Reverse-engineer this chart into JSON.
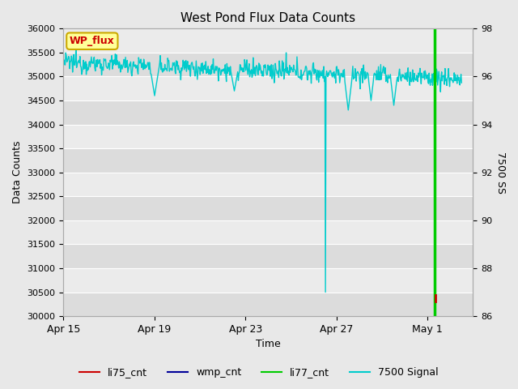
{
  "title": "West Pond Flux Data Counts",
  "xlabel": "Time",
  "ylabel_left": "Data Counts",
  "ylabel_right": "7500 SS",
  "ylim_left": [
    30000,
    36000
  ],
  "ylim_right": [
    86,
    98
  ],
  "yticks_left": [
    30000,
    30500,
    31000,
    31500,
    32000,
    32500,
    33000,
    33500,
    34000,
    34500,
    35000,
    35500,
    36000
  ],
  "yticks_right": [
    86,
    88,
    90,
    92,
    94,
    96,
    98
  ],
  "xtick_labels": [
    "Apr 15",
    "Apr 19",
    "Apr 23",
    "Apr 27",
    "May 1"
  ],
  "xtick_positions": [
    0,
    4,
    8,
    12,
    16
  ],
  "xlim": [
    0,
    18
  ],
  "fig_bg_color": "#e8e8e8",
  "plot_bg_color": "#e8e8e8",
  "legend_entries": [
    "li75_cnt",
    "wmp_cnt",
    "li77_cnt",
    "7500 Signal"
  ],
  "legend_colors": [
    "#cc0000",
    "#000099",
    "#00cc00",
    "#00cccc"
  ],
  "wp_flux_label": "WP_flux",
  "wp_flux_bg": "#ffff99",
  "wp_flux_border": "#ccaa00",
  "wp_flux_text_color": "#cc0000",
  "grid_color": "#ffffff",
  "li77_color": "#00cc00",
  "cyan_color": "#00cccc",
  "red_color": "#cc0000",
  "band_colors": [
    "#dcdcdc",
    "#ebebeb"
  ],
  "band_edges": [
    30000,
    30500,
    31000,
    31500,
    32000,
    32500,
    33000,
    33500,
    34000,
    34500,
    35000,
    35500,
    36000
  ]
}
